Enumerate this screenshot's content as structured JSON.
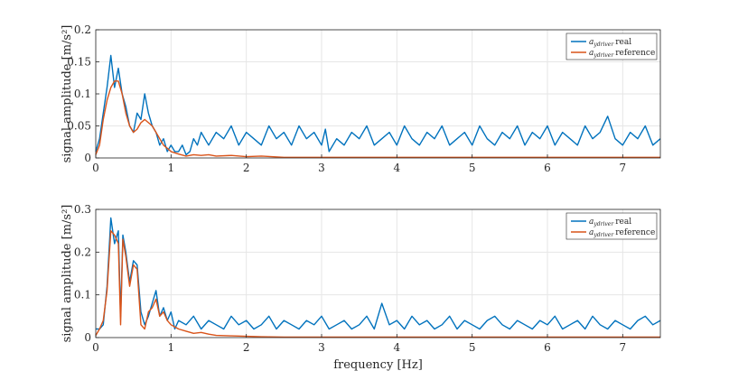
{
  "colors": {
    "real": "#0072BD",
    "reference": "#D95319",
    "grid": "#e6e6e6",
    "axis": "#262626"
  },
  "chart_data": [
    {
      "type": "line",
      "ylabel": "signal amplitude [m/s²]",
      "xlabel": "",
      "xlim": [
        0,
        7.5
      ],
      "ylim": [
        0,
        0.2
      ],
      "xticks": [
        "0",
        "1",
        "2",
        "3",
        "4",
        "5",
        "6",
        "7"
      ],
      "yticks": [
        "0",
        "0.05",
        "0.1",
        "0.15",
        "0.2"
      ],
      "grid": true,
      "legend_position": "top-right",
      "legend": [
        {
          "var": "a",
          "sub": "ydriver",
          "suffix": "real"
        },
        {
          "var": "a",
          "sub": "ydriver",
          "suffix": "reference"
        }
      ],
      "series": [
        {
          "name": "a_ydriver real",
          "color": "#0072BD",
          "x": [
            0,
            0.05,
            0.1,
            0.15,
            0.2,
            0.25,
            0.3,
            0.35,
            0.4,
            0.45,
            0.5,
            0.55,
            0.6,
            0.65,
            0.7,
            0.75,
            0.8,
            0.85,
            0.9,
            0.95,
            1.0,
            1.05,
            1.1,
            1.15,
            1.2,
            1.25,
            1.3,
            1.35,
            1.4,
            1.45,
            1.5,
            1.6,
            1.7,
            1.8,
            1.9,
            2.0,
            2.1,
            2.2,
            2.3,
            2.4,
            2.5,
            2.6,
            2.7,
            2.8,
            2.9,
            3.0,
            3.05,
            3.1,
            3.2,
            3.3,
            3.4,
            3.5,
            3.6,
            3.7,
            3.8,
            3.9,
            4.0,
            4.1,
            4.2,
            4.3,
            4.4,
            4.5,
            4.6,
            4.7,
            4.8,
            4.9,
            5.0,
            5.1,
            5.2,
            5.3,
            5.4,
            5.5,
            5.6,
            5.7,
            5.8,
            5.9,
            6.0,
            6.1,
            6.2,
            6.3,
            6.4,
            6.5,
            6.6,
            6.7,
            6.8,
            6.9,
            7.0,
            7.1,
            7.2,
            7.3,
            7.4,
            7.5
          ],
          "y": [
            0.01,
            0.03,
            0.07,
            0.11,
            0.16,
            0.11,
            0.14,
            0.1,
            0.08,
            0.05,
            0.04,
            0.07,
            0.06,
            0.1,
            0.07,
            0.05,
            0.04,
            0.02,
            0.03,
            0.01,
            0.02,
            0.01,
            0.01,
            0.02,
            0.005,
            0.01,
            0.03,
            0.02,
            0.04,
            0.03,
            0.02,
            0.04,
            0.03,
            0.05,
            0.02,
            0.04,
            0.03,
            0.02,
            0.05,
            0.03,
            0.04,
            0.02,
            0.05,
            0.03,
            0.04,
            0.02,
            0.045,
            0.01,
            0.03,
            0.02,
            0.04,
            0.03,
            0.05,
            0.02,
            0.03,
            0.04,
            0.02,
            0.05,
            0.03,
            0.02,
            0.04,
            0.03,
            0.05,
            0.02,
            0.03,
            0.04,
            0.02,
            0.05,
            0.03,
            0.02,
            0.04,
            0.03,
            0.05,
            0.02,
            0.04,
            0.03,
            0.05,
            0.02,
            0.04,
            0.03,
            0.02,
            0.05,
            0.03,
            0.04,
            0.065,
            0.03,
            0.02,
            0.04,
            0.03,
            0.05,
            0.02,
            0.03
          ]
        },
        {
          "name": "a_ydriver reference",
          "color": "#D95319",
          "x": [
            0,
            0.05,
            0.1,
            0.15,
            0.2,
            0.25,
            0.3,
            0.35,
            0.4,
            0.45,
            0.5,
            0.55,
            0.6,
            0.65,
            0.7,
            0.75,
            0.8,
            0.85,
            0.9,
            0.95,
            1.0,
            1.1,
            1.2,
            1.3,
            1.4,
            1.5,
            1.6,
            1.8,
            2.0,
            2.2,
            2.5,
            3.0,
            3.5,
            4.0,
            5.0,
            6.0,
            7.0,
            7.5
          ],
          "y": [
            0.005,
            0.02,
            0.06,
            0.09,
            0.11,
            0.12,
            0.12,
            0.1,
            0.07,
            0.05,
            0.04,
            0.045,
            0.055,
            0.06,
            0.055,
            0.05,
            0.04,
            0.03,
            0.02,
            0.015,
            0.01,
            0.006,
            0.003,
            0.005,
            0.004,
            0.005,
            0.003,
            0.004,
            0.002,
            0.003,
            0.001,
            0.001,
            0.001,
            0.001,
            0.001,
            0.001,
            0.001,
            0.001
          ]
        }
      ]
    },
    {
      "type": "line",
      "ylabel": "signal amplitude [m/s²]",
      "xlabel": "frequency [Hz]",
      "xlim": [
        0,
        7.5
      ],
      "ylim": [
        0,
        0.3
      ],
      "xticks": [
        "0",
        "1",
        "2",
        "3",
        "4",
        "5",
        "6",
        "7"
      ],
      "yticks": [
        "0",
        "0.1",
        "0.2",
        "0.3"
      ],
      "grid": true,
      "legend_position": "top-right",
      "legend": [
        {
          "var": "a",
          "sub": "ydriver",
          "suffix": "real"
        },
        {
          "var": "a",
          "sub": "ydriver",
          "suffix": "reference"
        }
      ],
      "series": [
        {
          "name": "a_ydriver real",
          "color": "#0072BD",
          "x": [
            0,
            0.05,
            0.1,
            0.15,
            0.2,
            0.25,
            0.3,
            0.33,
            0.36,
            0.4,
            0.45,
            0.5,
            0.55,
            0.6,
            0.65,
            0.7,
            0.75,
            0.8,
            0.85,
            0.9,
            0.95,
            1.0,
            1.05,
            1.1,
            1.2,
            1.3,
            1.4,
            1.5,
            1.6,
            1.7,
            1.8,
            1.9,
            2.0,
            2.1,
            2.2,
            2.3,
            2.4,
            2.5,
            2.6,
            2.7,
            2.8,
            2.9,
            3.0,
            3.1,
            3.2,
            3.3,
            3.4,
            3.5,
            3.6,
            3.7,
            3.8,
            3.9,
            4.0,
            4.1,
            4.2,
            4.3,
            4.4,
            4.5,
            4.6,
            4.7,
            4.8,
            4.9,
            5.0,
            5.1,
            5.2,
            5.3,
            5.4,
            5.5,
            5.6,
            5.7,
            5.8,
            5.9,
            6.0,
            6.1,
            6.2,
            6.3,
            6.4,
            6.5,
            6.6,
            6.7,
            6.8,
            6.9,
            7.0,
            7.1,
            7.2,
            7.3,
            7.4,
            7.5
          ],
          "y": [
            0.02,
            0.02,
            0.03,
            0.12,
            0.28,
            0.22,
            0.25,
            0.05,
            0.24,
            0.2,
            0.13,
            0.18,
            0.17,
            0.06,
            0.03,
            0.05,
            0.08,
            0.11,
            0.05,
            0.07,
            0.04,
            0.06,
            0.02,
            0.04,
            0.03,
            0.05,
            0.02,
            0.04,
            0.03,
            0.02,
            0.05,
            0.03,
            0.04,
            0.02,
            0.03,
            0.05,
            0.02,
            0.04,
            0.03,
            0.02,
            0.04,
            0.03,
            0.05,
            0.02,
            0.03,
            0.04,
            0.02,
            0.03,
            0.05,
            0.02,
            0.08,
            0.03,
            0.04,
            0.02,
            0.05,
            0.03,
            0.04,
            0.02,
            0.03,
            0.05,
            0.02,
            0.04,
            0.03,
            0.02,
            0.04,
            0.05,
            0.03,
            0.02,
            0.04,
            0.03,
            0.02,
            0.04,
            0.03,
            0.05,
            0.02,
            0.03,
            0.04,
            0.02,
            0.05,
            0.03,
            0.02,
            0.04,
            0.03,
            0.02,
            0.04,
            0.05,
            0.03,
            0.04
          ]
        },
        {
          "name": "a_ydriver reference",
          "color": "#D95319",
          "x": [
            0,
            0.05,
            0.1,
            0.15,
            0.2,
            0.25,
            0.3,
            0.33,
            0.36,
            0.4,
            0.45,
            0.5,
            0.55,
            0.6,
            0.65,
            0.7,
            0.75,
            0.8,
            0.85,
            0.9,
            0.95,
            1.0,
            1.1,
            1.2,
            1.3,
            1.4,
            1.5,
            1.6,
            1.8,
            2.0,
            2.2,
            2.5,
            3.0,
            4.0,
            5.0,
            6.0,
            7.0,
            7.5
          ],
          "y": [
            0.005,
            0.02,
            0.04,
            0.11,
            0.25,
            0.24,
            0.22,
            0.03,
            0.23,
            0.19,
            0.12,
            0.17,
            0.16,
            0.03,
            0.02,
            0.06,
            0.07,
            0.09,
            0.05,
            0.06,
            0.04,
            0.03,
            0.02,
            0.015,
            0.01,
            0.012,
            0.008,
            0.005,
            0.004,
            0.003,
            0.002,
            0.001,
            0.001,
            0.001,
            0.001,
            0.001,
            0.001,
            0.001
          ]
        }
      ]
    }
  ]
}
